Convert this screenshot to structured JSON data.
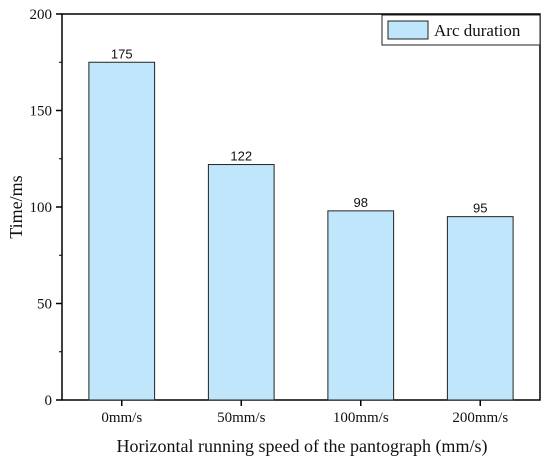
{
  "chart_data": {
    "type": "bar",
    "categories": [
      "0mm/s",
      "50mm/s",
      "100mm/s",
      "200mm/s"
    ],
    "series": [
      {
        "name": "Arc duration",
        "values": [
          175,
          122,
          98,
          95
        ]
      }
    ],
    "data_labels": [
      "175",
      "122",
      "98",
      "95"
    ],
    "xlabel": "Horizontal running speed of the pantograph (mm/s)",
    "ylabel": "Time/ms",
    "ylim": [
      0,
      200
    ],
    "yticks": [
      0,
      50,
      100,
      150,
      200
    ],
    "ytick_labels": [
      "0",
      "50",
      "100",
      "150",
      "200"
    ],
    "grid": false,
    "legend_position": "top-right",
    "colors": {
      "bar_fill": "#bfe6fb",
      "bar_stroke": "#222222",
      "axis": "#000000"
    }
  }
}
